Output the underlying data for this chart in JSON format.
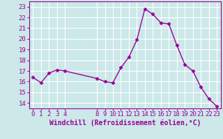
{
  "x": [
    0,
    1,
    2,
    3,
    4,
    8,
    9,
    10,
    11,
    12,
    13,
    14,
    15,
    16,
    17,
    18,
    19,
    20,
    21,
    22,
    23
  ],
  "y": [
    16.4,
    15.9,
    16.8,
    17.1,
    17.0,
    16.3,
    16.0,
    15.9,
    17.3,
    18.3,
    19.9,
    22.8,
    22.3,
    21.5,
    21.4,
    19.4,
    17.6,
    17.0,
    15.5,
    14.4,
    13.7
  ],
  "xticks": [
    0,
    1,
    2,
    3,
    4,
    8,
    9,
    10,
    11,
    12,
    13,
    14,
    15,
    16,
    17,
    18,
    19,
    20,
    21,
    22,
    23
  ],
  "yticks": [
    14,
    15,
    16,
    17,
    18,
    19,
    20,
    21,
    22,
    23
  ],
  "ylim": [
    13.5,
    23.5
  ],
  "xlim": [
    -0.5,
    23.5
  ],
  "line_color": "#990099",
  "marker": "D",
  "marker_size": 2.5,
  "linewidth": 1.0,
  "xlabel": "Windchill (Refroidissement éolien,°C)",
  "bg_color": "#cce8e8",
  "grid_color": "#ffffff",
  "tick_label_color": "#990099",
  "xlabel_color": "#990099",
  "xlabel_fontsize": 7,
  "tick_fontsize": 6.5,
  "title": ""
}
